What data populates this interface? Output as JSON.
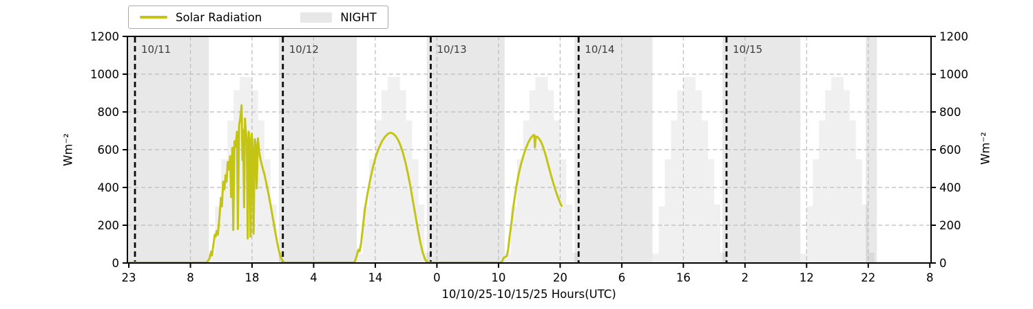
{
  "figure": {
    "xlabel": "10/10/25-10/15/25  Hours(UTC)",
    "ylabel_left": "Wm⁻²",
    "ylabel_right": "Wm⁻²",
    "legend": {
      "line_label": "Solar Radiation",
      "patch_label": "NIGHT"
    }
  },
  "chart_data": {
    "type": "line",
    "title": "",
    "xlabel": "10/10/25-10/15/25  Hours(UTC)",
    "ylabel": "Wm⁻²",
    "ylim": [
      0,
      1200
    ],
    "yticks": [
      0,
      200,
      400,
      600,
      800,
      1000,
      1200
    ],
    "grid_y": [
      200,
      400,
      600,
      800,
      1000
    ],
    "x_hours": {
      "min": -1.23,
      "max": 129.2,
      "note": "hours relative to 10/11 00:00 UTC"
    },
    "x_ticks": [
      {
        "hour": -1,
        "label": "23"
      },
      {
        "hour": 9,
        "label": "8"
      },
      {
        "hour": 19,
        "label": "18"
      },
      {
        "hour": 29,
        "label": "4"
      },
      {
        "hour": 39,
        "label": "14"
      },
      {
        "hour": 49,
        "label": "0"
      },
      {
        "hour": 59,
        "label": "10"
      },
      {
        "hour": 69,
        "label": "20"
      },
      {
        "hour": 79,
        "label": "6"
      },
      {
        "hour": 89,
        "label": "16"
      },
      {
        "hour": 99,
        "label": "2"
      },
      {
        "hour": 109,
        "label": "12"
      },
      {
        "hour": 119,
        "label": "22"
      },
      {
        "hour": 129,
        "label": "8"
      }
    ],
    "day_lines": [
      {
        "hour": 0,
        "label": "10/11"
      },
      {
        "hour": 24,
        "label": "10/12"
      },
      {
        "hour": 48,
        "label": "10/13"
      },
      {
        "hour": 72,
        "label": "10/14"
      },
      {
        "hour": 96,
        "label": "10/15"
      }
    ],
    "night_label": "NIGHT",
    "night_bands_hours": [
      [
        -1.23,
        12.0
      ],
      [
        23.35,
        36.0
      ],
      [
        47.35,
        60.0
      ],
      [
        71.35,
        84.0
      ],
      [
        95.35,
        108.0
      ],
      [
        118.6,
        120.4
      ]
    ],
    "clear_sky_steps": {
      "day_start_hours": [
        12,
        36,
        60,
        84,
        108
      ],
      "hourly_values": [
        50,
        300,
        550,
        755,
        915,
        985,
        985,
        915,
        755,
        550,
        310,
        55
      ]
    },
    "solar_series": {
      "name": "Solar Radiation",
      "points": [
        [
          -0.9,
          2
        ],
        [
          11.5,
          2
        ],
        [
          11.8,
          8
        ],
        [
          12.1,
          25
        ],
        [
          12.35,
          60
        ],
        [
          12.5,
          40
        ],
        [
          12.7,
          90
        ],
        [
          12.95,
          150
        ],
        [
          13.1,
          140
        ],
        [
          13.25,
          170
        ],
        [
          13.45,
          150
        ],
        [
          13.7,
          240
        ],
        [
          13.95,
          345
        ],
        [
          14.1,
          300
        ],
        [
          14.3,
          430
        ],
        [
          14.5,
          390
        ],
        [
          14.7,
          465
        ],
        [
          14.85,
          430
        ],
        [
          15.05,
          535
        ],
        [
          15.25,
          495
        ],
        [
          15.45,
          565
        ],
        [
          15.6,
          350
        ],
        [
          15.8,
          610
        ],
        [
          15.95,
          175
        ],
        [
          16.15,
          645
        ],
        [
          16.35,
          615
        ],
        [
          16.55,
          695
        ],
        [
          16.7,
          180
        ],
        [
          16.9,
          730
        ],
        [
          17.1,
          770
        ],
        [
          17.3,
          835
        ],
        [
          17.45,
          545
        ],
        [
          17.55,
          705
        ],
        [
          17.7,
          295
        ],
        [
          17.85,
          765
        ],
        [
          18.0,
          690
        ],
        [
          18.15,
          645
        ],
        [
          18.3,
          130
        ],
        [
          18.45,
          695
        ],
        [
          18.6,
          655
        ],
        [
          18.75,
          140
        ],
        [
          18.95,
          685
        ],
        [
          19.1,
          600
        ],
        [
          19.25,
          155
        ],
        [
          19.45,
          655
        ],
        [
          19.6,
          625
        ],
        [
          19.75,
          395
        ],
        [
          19.95,
          660
        ],
        [
          20.15,
          590
        ],
        [
          20.4,
          545
        ],
        [
          20.7,
          505
        ],
        [
          21.0,
          470
        ],
        [
          21.3,
          425
        ],
        [
          21.7,
          360
        ],
        [
          22.1,
          290
        ],
        [
          22.5,
          215
        ],
        [
          22.9,
          140
        ],
        [
          23.3,
          70
        ],
        [
          23.7,
          25
        ],
        [
          24.1,
          6
        ],
        [
          24.4,
          2
        ],
        [
          35.4,
          2
        ],
        [
          35.7,
          8
        ],
        [
          36.0,
          40
        ],
        [
          36.25,
          70
        ],
        [
          36.45,
          62
        ],
        [
          36.7,
          105
        ],
        [
          37.0,
          195
        ],
        [
          37.3,
          280
        ],
        [
          37.7,
          360
        ],
        [
          38.1,
          430
        ],
        [
          38.6,
          505
        ],
        [
          39.1,
          565
        ],
        [
          39.6,
          610
        ],
        [
          40.1,
          645
        ],
        [
          40.6,
          670
        ],
        [
          41.1,
          685
        ],
        [
          41.5,
          690
        ],
        [
          41.9,
          685
        ],
        [
          42.3,
          672
        ],
        [
          42.7,
          652
        ],
        [
          43.1,
          622
        ],
        [
          43.5,
          582
        ],
        [
          43.9,
          532
        ],
        [
          44.3,
          472
        ],
        [
          44.7,
          405
        ],
        [
          45.1,
          330
        ],
        [
          45.5,
          255
        ],
        [
          45.9,
          180
        ],
        [
          46.3,
          110
        ],
        [
          46.7,
          55
        ],
        [
          47.1,
          18
        ],
        [
          47.45,
          4
        ],
        [
          47.8,
          2
        ],
        [
          59.3,
          2
        ],
        [
          59.6,
          10
        ],
        [
          59.85,
          28
        ],
        [
          60.1,
          32
        ],
        [
          60.35,
          38
        ],
        [
          60.55,
          70
        ],
        [
          60.8,
          140
        ],
        [
          61.1,
          215
        ],
        [
          61.5,
          320
        ],
        [
          61.9,
          405
        ],
        [
          62.3,
          475
        ],
        [
          62.7,
          530
        ],
        [
          63.1,
          575
        ],
        [
          63.5,
          613
        ],
        [
          63.9,
          643
        ],
        [
          64.3,
          665
        ],
        [
          64.6,
          676
        ],
        [
          64.8,
          678
        ],
        [
          64.9,
          612
        ],
        [
          65.05,
          670
        ],
        [
          65.3,
          668
        ],
        [
          65.6,
          658
        ],
        [
          65.9,
          642
        ],
        [
          66.2,
          618
        ],
        [
          66.5,
          588
        ],
        [
          66.8,
          553
        ],
        [
          67.1,
          515
        ],
        [
          67.5,
          468
        ],
        [
          67.9,
          422
        ],
        [
          68.3,
          380
        ],
        [
          68.7,
          343
        ],
        [
          69.0,
          318
        ],
        [
          69.25,
          302
        ]
      ]
    },
    "colors": {
      "solar_line": "#c3c413",
      "night_fill": "rgba(0,0,0,0.09)",
      "clearsky_fill": "rgba(0,0,0,0.057)",
      "grid": "#bbbbbb",
      "spine": "#000000",
      "day_line": "#0a0a0a",
      "day_label": "#3c3c3c",
      "legend_patch": "#e7e7e7"
    }
  }
}
